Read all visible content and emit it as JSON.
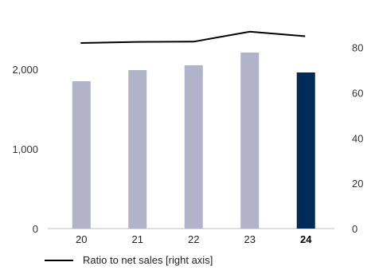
{
  "chart_data": {
    "type": "bar",
    "categories": [
      "20",
      "21",
      "22",
      "23",
      "24"
    ],
    "highlight_category": "24",
    "series": [
      {
        "type": "bar",
        "axis": "left",
        "values": [
          1850,
          1990,
          2050,
          2210,
          1960
        ],
        "color": "#b1b3c8",
        "highlight_color": "#002a57"
      },
      {
        "type": "line",
        "axis": "right",
        "name": "Ratio to net sales [right axis]",
        "values": [
          82,
          82.5,
          82.6,
          87,
          85
        ],
        "color": "#000000"
      }
    ],
    "left_axis": {
      "min": 0,
      "max": 2500,
      "ticks": [
        0,
        1000,
        2000
      ],
      "tick_labels": [
        "0",
        "1,000",
        "2,000"
      ]
    },
    "right_axis": {
      "min": 0,
      "max": 88,
      "ticks": [
        0,
        20,
        40,
        60,
        80
      ],
      "tick_labels": [
        "0",
        "20",
        "40",
        "60",
        "80"
      ]
    },
    "grid": false,
    "legend": {
      "position": "bottom-left",
      "entries": [
        "Ratio to net sales [right axis]"
      ]
    }
  }
}
